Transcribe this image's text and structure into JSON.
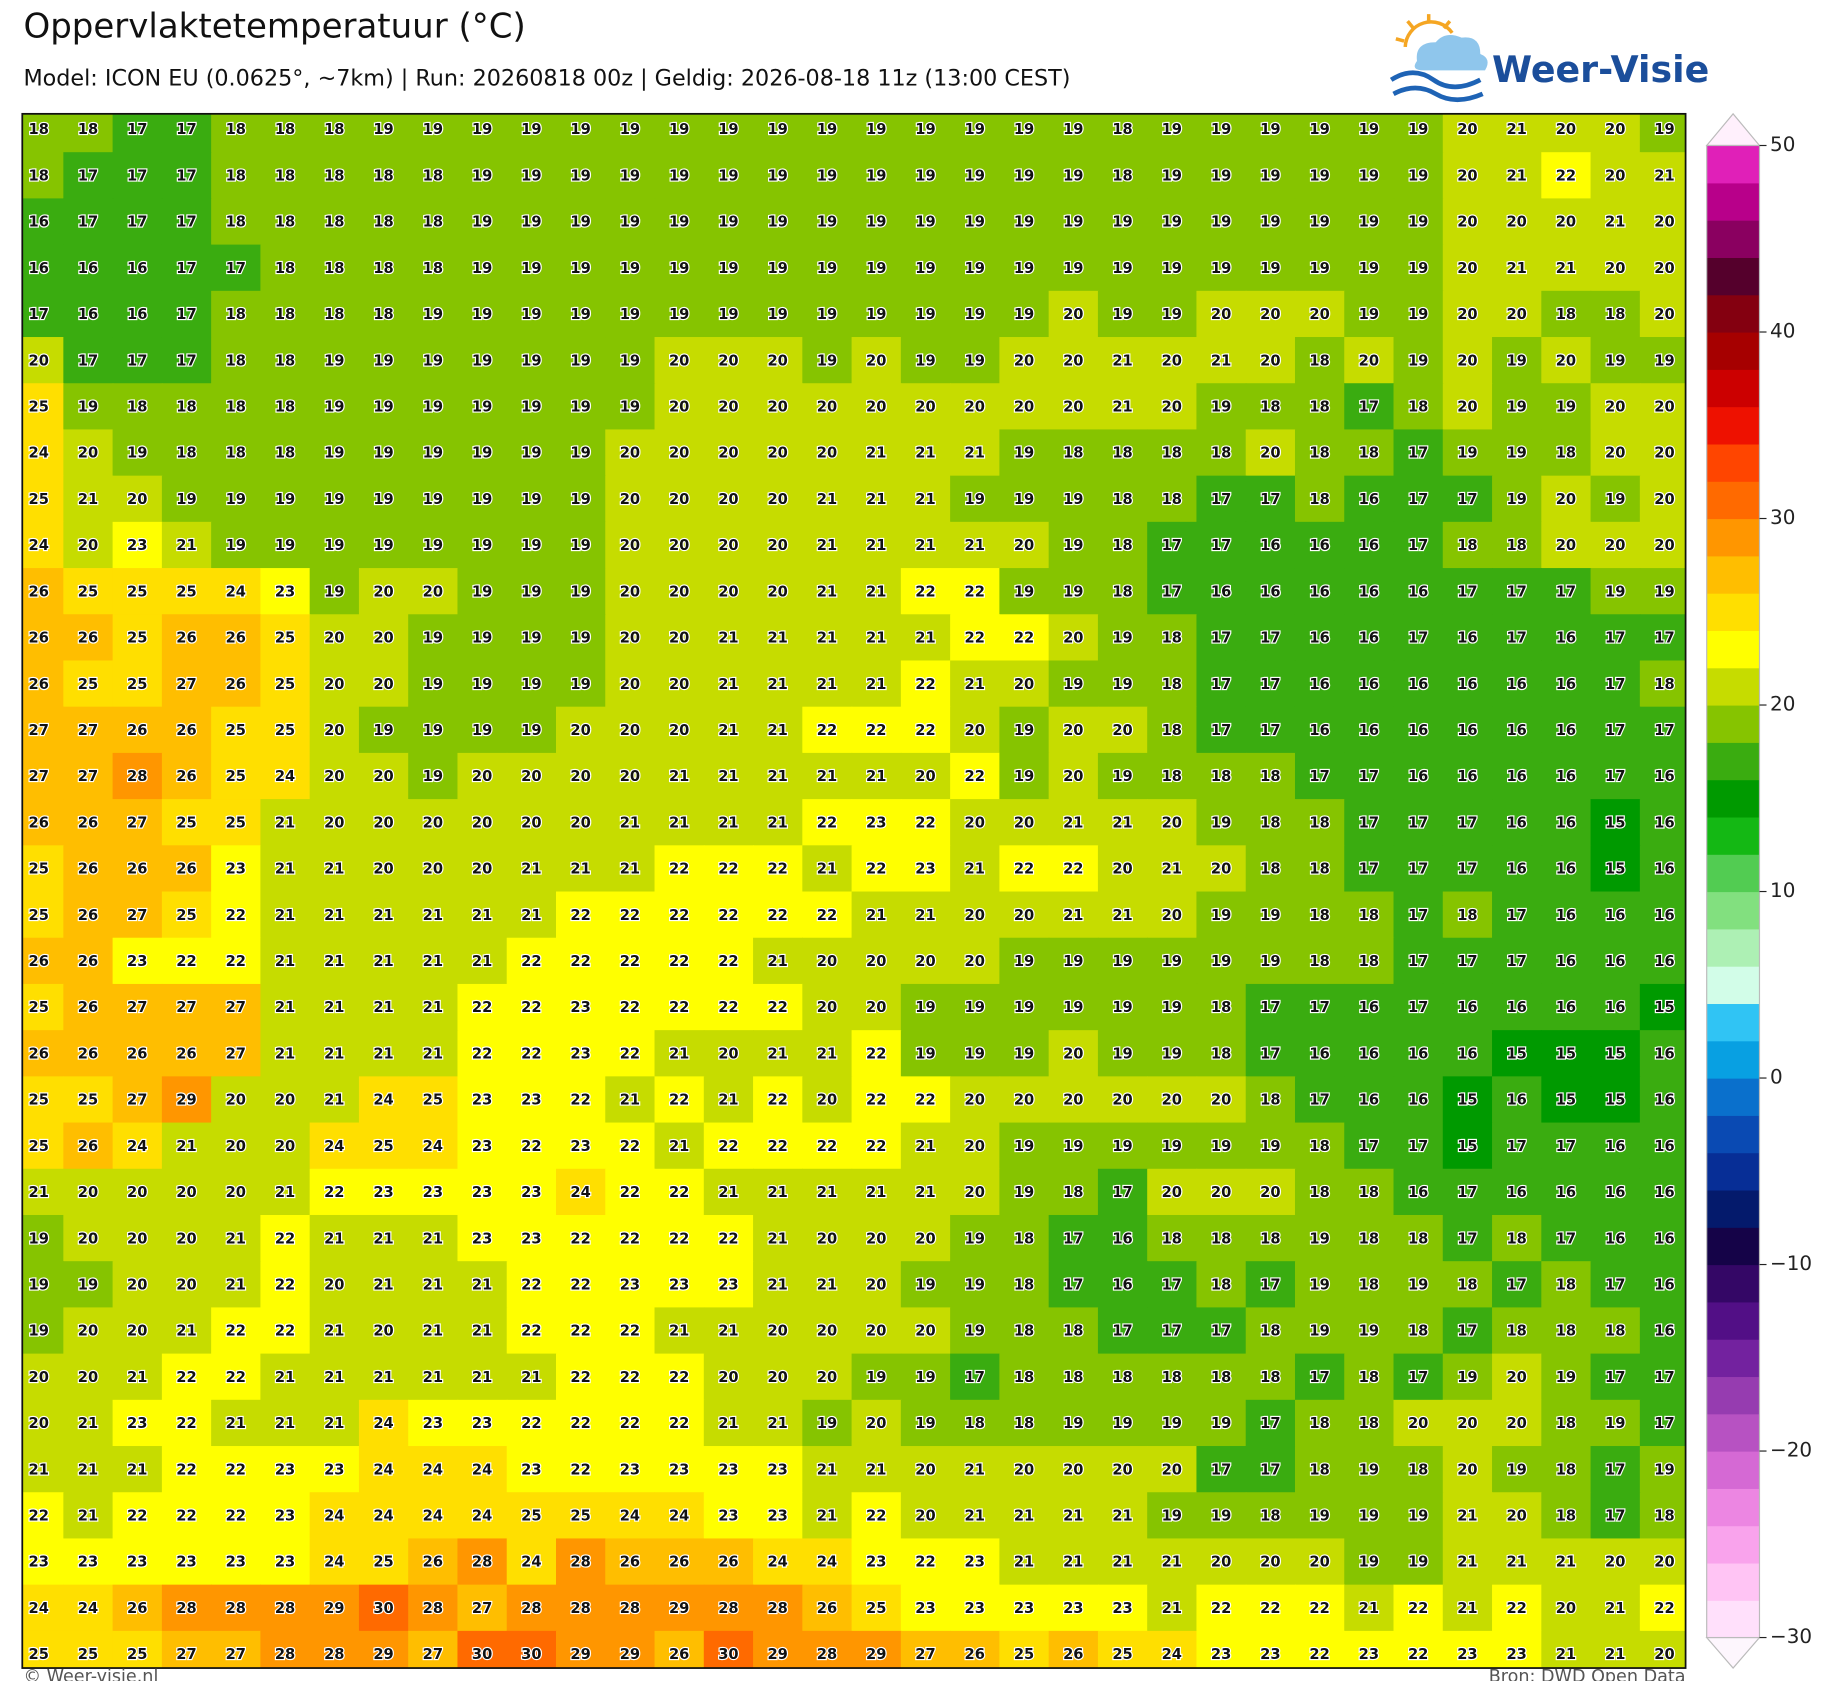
{
  "header": {
    "title": "Oppervlaktetemperatuur (°C)",
    "subtitle": "Model: ICON EU (0.0625°, ~7km)  |  Run: 20260818 00z  |  Geldig: 2026-08-18 11z (13:00 CEST)"
  },
  "logo": {
    "text": "Weer-Visie"
  },
  "grid": {
    "rows": [
      [
        18,
        18,
        17,
        17,
        18,
        18,
        18,
        19,
        19,
        19,
        19,
        19,
        19,
        19,
        19,
        19,
        19,
        19,
        19,
        19,
        19,
        19,
        18,
        19,
        19,
        19,
        19,
        19,
        19,
        20,
        21,
        20,
        20,
        19
      ],
      [
        18,
        17,
        17,
        17,
        18,
        18,
        18,
        18,
        18,
        19,
        19,
        19,
        19,
        19,
        19,
        19,
        19,
        19,
        19,
        19,
        19,
        19,
        18,
        19,
        19,
        19,
        19,
        19,
        19,
        20,
        21,
        22,
        20,
        21
      ],
      [
        16,
        17,
        17,
        17,
        18,
        18,
        18,
        18,
        18,
        19,
        19,
        19,
        19,
        19,
        19,
        19,
        19,
        19,
        19,
        19,
        19,
        19,
        19,
        19,
        19,
        19,
        19,
        19,
        19,
        20,
        20,
        20,
        21,
        20
      ],
      [
        16,
        16,
        16,
        17,
        17,
        18,
        18,
        18,
        18,
        19,
        19,
        19,
        19,
        19,
        19,
        19,
        19,
        19,
        19,
        19,
        19,
        19,
        19,
        19,
        19,
        19,
        19,
        19,
        19,
        20,
        21,
        21,
        20,
        20
      ],
      [
        17,
        16,
        16,
        17,
        18,
        18,
        18,
        18,
        19,
        19,
        19,
        19,
        19,
        19,
        19,
        19,
        19,
        19,
        19,
        19,
        19,
        20,
        19,
        19,
        20,
        20,
        20,
        19,
        19,
        20,
        20,
        18,
        18,
        20
      ],
      [
        20,
        17,
        17,
        17,
        18,
        18,
        19,
        19,
        19,
        19,
        19,
        19,
        19,
        20,
        20,
        20,
        19,
        20,
        19,
        19,
        20,
        20,
        21,
        20,
        21,
        20,
        18,
        20,
        19,
        20,
        19,
        20,
        19,
        19
      ],
      [
        25,
        19,
        18,
        18,
        18,
        18,
        19,
        19,
        19,
        19,
        19,
        19,
        19,
        20,
        20,
        20,
        20,
        20,
        20,
        20,
        20,
        20,
        21,
        20,
        19,
        18,
        18,
        17,
        18,
        20,
        19,
        19,
        20,
        20
      ],
      [
        24,
        20,
        19,
        18,
        18,
        18,
        19,
        19,
        19,
        19,
        19,
        19,
        20,
        20,
        20,
        20,
        20,
        21,
        21,
        21,
        19,
        18,
        18,
        18,
        18,
        20,
        18,
        18,
        17,
        19,
        19,
        18,
        20,
        20
      ],
      [
        25,
        21,
        20,
        19,
        19,
        19,
        19,
        19,
        19,
        19,
        19,
        19,
        20,
        20,
        20,
        20,
        21,
        21,
        21,
        19,
        19,
        19,
        18,
        18,
        17,
        17,
        18,
        16,
        17,
        17,
        19,
        20,
        19,
        20
      ],
      [
        24,
        20,
        23,
        21,
        19,
        19,
        19,
        19,
        19,
        19,
        19,
        19,
        20,
        20,
        20,
        20,
        21,
        21,
        21,
        21,
        20,
        19,
        18,
        17,
        17,
        16,
        16,
        16,
        17,
        18,
        18,
        20,
        20,
        20
      ],
      [
        26,
        25,
        25,
        25,
        24,
        23,
        19,
        20,
        20,
        19,
        19,
        19,
        20,
        20,
        20,
        20,
        21,
        21,
        22,
        22,
        19,
        19,
        18,
        17,
        16,
        16,
        16,
        16,
        16,
        17,
        17,
        17,
        19,
        19
      ],
      [
        26,
        26,
        25,
        26,
        26,
        25,
        20,
        20,
        19,
        19,
        19,
        19,
        20,
        20,
        21,
        21,
        21,
        21,
        21,
        22,
        22,
        20,
        19,
        18,
        17,
        17,
        16,
        16,
        17,
        16,
        17,
        16,
        17,
        17
      ],
      [
        26,
        25,
        25,
        27,
        26,
        25,
        20,
        20,
        19,
        19,
        19,
        19,
        20,
        20,
        21,
        21,
        21,
        21,
        22,
        21,
        20,
        19,
        19,
        18,
        17,
        17,
        16,
        16,
        16,
        16,
        16,
        16,
        17,
        18
      ],
      [
        27,
        27,
        26,
        26,
        25,
        25,
        20,
        19,
        19,
        19,
        19,
        20,
        20,
        20,
        21,
        21,
        22,
        22,
        22,
        20,
        19,
        20,
        20,
        18,
        17,
        17,
        16,
        16,
        16,
        16,
        16,
        16,
        17,
        17
      ],
      [
        27,
        27,
        28,
        26,
        25,
        24,
        20,
        20,
        19,
        20,
        20,
        20,
        20,
        21,
        21,
        21,
        21,
        21,
        20,
        22,
        19,
        20,
        19,
        18,
        18,
        18,
        17,
        17,
        16,
        16,
        16,
        16,
        17,
        16
      ],
      [
        26,
        26,
        27,
        25,
        25,
        21,
        20,
        20,
        20,
        20,
        20,
        20,
        21,
        21,
        21,
        21,
        22,
        23,
        22,
        20,
        20,
        21,
        21,
        20,
        19,
        18,
        18,
        17,
        17,
        17,
        16,
        16,
        15,
        16
      ],
      [
        25,
        26,
        26,
        26,
        23,
        21,
        21,
        20,
        20,
        20,
        21,
        21,
        21,
        22,
        22,
        22,
        21,
        22,
        23,
        21,
        22,
        22,
        20,
        21,
        20,
        18,
        18,
        17,
        17,
        17,
        16,
        16,
        15,
        16
      ],
      [
        25,
        26,
        27,
        25,
        22,
        21,
        21,
        21,
        21,
        21,
        21,
        22,
        22,
        22,
        22,
        22,
        22,
        21,
        21,
        20,
        20,
        21,
        21,
        20,
        19,
        19,
        18,
        18,
        17,
        18,
        17,
        16,
        16,
        16
      ],
      [
        26,
        26,
        23,
        22,
        22,
        21,
        21,
        21,
        21,
        21,
        22,
        22,
        22,
        22,
        22,
        21,
        20,
        20,
        20,
        20,
        19,
        19,
        19,
        19,
        19,
        19,
        18,
        18,
        17,
        17,
        17,
        16,
        16,
        16
      ],
      [
        25,
        26,
        27,
        27,
        27,
        21,
        21,
        21,
        21,
        22,
        22,
        23,
        22,
        22,
        22,
        22,
        20,
        20,
        19,
        19,
        19,
        19,
        19,
        19,
        18,
        17,
        17,
        16,
        17,
        16,
        16,
        16,
        16,
        15
      ],
      [
        26,
        26,
        26,
        26,
        27,
        21,
        21,
        21,
        21,
        22,
        22,
        23,
        22,
        21,
        20,
        21,
        21,
        22,
        19,
        19,
        19,
        20,
        19,
        19,
        18,
        17,
        16,
        16,
        16,
        16,
        15,
        15,
        15,
        16
      ],
      [
        25,
        25,
        27,
        29,
        20,
        20,
        21,
        24,
        25,
        23,
        23,
        22,
        21,
        22,
        21,
        22,
        20,
        22,
        22,
        20,
        20,
        20,
        20,
        20,
        20,
        18,
        17,
        16,
        16,
        15,
        16,
        15,
        15,
        16
      ],
      [
        25,
        26,
        24,
        21,
        20,
        20,
        24,
        25,
        24,
        23,
        22,
        23,
        22,
        21,
        22,
        22,
        22,
        22,
        21,
        20,
        19,
        19,
        19,
        19,
        19,
        19,
        18,
        17,
        17,
        15,
        17,
        17,
        16,
        16
      ],
      [
        21,
        20,
        20,
        20,
        20,
        21,
        22,
        23,
        23,
        23,
        23,
        24,
        22,
        22,
        21,
        21,
        21,
        21,
        21,
        20,
        19,
        18,
        17,
        20,
        20,
        20,
        18,
        18,
        16,
        17,
        16,
        16,
        16,
        16
      ],
      [
        19,
        20,
        20,
        20,
        21,
        22,
        21,
        21,
        21,
        23,
        23,
        22,
        22,
        22,
        22,
        21,
        20,
        20,
        20,
        19,
        18,
        17,
        16,
        18,
        18,
        18,
        19,
        18,
        18,
        17,
        18,
        17,
        16,
        16
      ],
      [
        19,
        19,
        20,
        20,
        21,
        22,
        20,
        21,
        21,
        21,
        22,
        22,
        23,
        23,
        23,
        21,
        21,
        20,
        19,
        19,
        18,
        17,
        16,
        17,
        18,
        17,
        19,
        18,
        19,
        18,
        17,
        18,
        17,
        16
      ],
      [
        19,
        20,
        20,
        21,
        22,
        22,
        21,
        20,
        21,
        21,
        22,
        22,
        22,
        21,
        21,
        20,
        20,
        20,
        20,
        19,
        18,
        18,
        17,
        17,
        17,
        18,
        19,
        19,
        18,
        17,
        18,
        18,
        18,
        16
      ],
      [
        20,
        20,
        21,
        22,
        22,
        21,
        21,
        21,
        21,
        21,
        21,
        22,
        22,
        22,
        20,
        20,
        20,
        19,
        19,
        17,
        18,
        18,
        18,
        18,
        18,
        18,
        17,
        18,
        17,
        19,
        20,
        19,
        17,
        17
      ],
      [
        20,
        21,
        23,
        22,
        21,
        21,
        21,
        24,
        23,
        23,
        22,
        22,
        22,
        22,
        21,
        21,
        19,
        20,
        19,
        18,
        18,
        19,
        19,
        19,
        19,
        17,
        18,
        18,
        20,
        20,
        20,
        18,
        19,
        17
      ],
      [
        21,
        21,
        21,
        22,
        22,
        23,
        23,
        24,
        24,
        24,
        23,
        22,
        23,
        23,
        23,
        23,
        21,
        21,
        20,
        21,
        20,
        20,
        20,
        20,
        17,
        17,
        18,
        19,
        18,
        20,
        19,
        18,
        17,
        19
      ],
      [
        22,
        21,
        22,
        22,
        22,
        23,
        24,
        24,
        24,
        24,
        25,
        25,
        24,
        24,
        23,
        23,
        21,
        22,
        20,
        21,
        21,
        21,
        21,
        19,
        19,
        18,
        19,
        19,
        19,
        21,
        20,
        18,
        17,
        18
      ],
      [
        23,
        23,
        23,
        23,
        23,
        23,
        24,
        25,
        26,
        28,
        24,
        28,
        26,
        26,
        26,
        24,
        24,
        23,
        22,
        23,
        21,
        21,
        21,
        21,
        20,
        20,
        20,
        19,
        19,
        21,
        21,
        21,
        20,
        20
      ],
      [
        24,
        24,
        26,
        28,
        28,
        28,
        29,
        30,
        28,
        27,
        28,
        28,
        28,
        29,
        28,
        28,
        26,
        25,
        23,
        23,
        23,
        23,
        23,
        21,
        22,
        22,
        22,
        21,
        22,
        21,
        22,
        20,
        21,
        22
      ],
      [
        25,
        25,
        25,
        27,
        27,
        28,
        28,
        29,
        27,
        30,
        30,
        29,
        29,
        26,
        30,
        29,
        28,
        29,
        27,
        26,
        25,
        26,
        25,
        24,
        23,
        23,
        22,
        23,
        22,
        23,
        23,
        21,
        21,
        20
      ]
    ]
  },
  "colorbar": {
    "lim": [
      -30,
      50
    ],
    "ticks": [
      50,
      40,
      30,
      20,
      10,
      0,
      {
        "value": -10,
        "label": "−10"
      },
      {
        "value": -20,
        "label": "−20"
      },
      {
        "value": -30,
        "label": "−30"
      }
    ],
    "colors": [
      "#ffe0fb",
      "#ffc4f4",
      "#f9a3ec",
      "#ec86e2",
      "#d569d4",
      "#b752c2",
      "#963cb0",
      "#73229f",
      "#520f86",
      "#340766",
      "#150348",
      "#041a6c",
      "#072e96",
      "#0a4ab3",
      "#0a70cc",
      "#08a0e2",
      "#30c4f4",
      "#d2fde8",
      "#adf0b4",
      "#82e07f",
      "#52cc52",
      "#14b814",
      "#009a00",
      "#3aac10",
      "#86c400",
      "#c6dc00",
      "#ffff00",
      "#ffdf00",
      "#ffbe00",
      "#ff9600",
      "#ff6a00",
      "#ff4500",
      "#ee1100",
      "#cc0000",
      "#a60000",
      "#840010",
      "#55002c",
      "#8a0060",
      "#b8008a",
      "#e020b8"
    ]
  },
  "footer": {
    "left": "© Weer-visie.nl",
    "right": "Bron: DWD Open Data"
  }
}
